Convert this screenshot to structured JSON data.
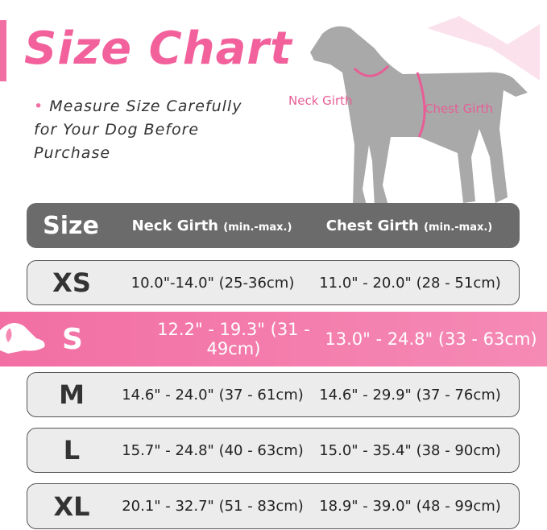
{
  "title": "Size Chart",
  "note": {
    "line1": "Measure Size Carefully",
    "line2": "for Your Dog Before",
    "line3": "Purchase"
  },
  "diagram": {
    "neck_label": "Neck Girth",
    "chest_label": "Chest Girth"
  },
  "colors": {
    "accent": "#f2619c",
    "header": "#6b6b6b",
    "row": "#ececec"
  },
  "table": {
    "headers": {
      "size": "Size",
      "neck": "Neck Girth",
      "neck_unit": "(min.-max.)",
      "chest": "Chest Girth",
      "chest_unit": "(min.-max.)"
    },
    "rows": [
      {
        "size": "XS",
        "neck": "10.0\"-14.0\" (25-36cm)",
        "chest": "11.0\" - 20.0\" (28 - 51cm)"
      },
      {
        "size": "S",
        "neck": "12.2\" - 19.3\" (31 - 49cm)",
        "chest": "13.0\" - 24.8\" (33 - 63cm)",
        "highlighted": true
      },
      {
        "size": "M",
        "neck": "14.6\" - 24.0\" (37 - 61cm)",
        "chest": "14.6\" - 29.9\" (37 - 76cm)"
      },
      {
        "size": "L",
        "neck": "15.7\" - 24.8\" (40 - 63cm)",
        "chest": "15.0\" - 35.4\" (38 - 90cm)"
      },
      {
        "size": "XL",
        "neck": "20.1\" - 32.7\" (51 - 83cm)",
        "chest": "18.9\" - 39.0\" (48 - 99cm)"
      }
    ]
  }
}
